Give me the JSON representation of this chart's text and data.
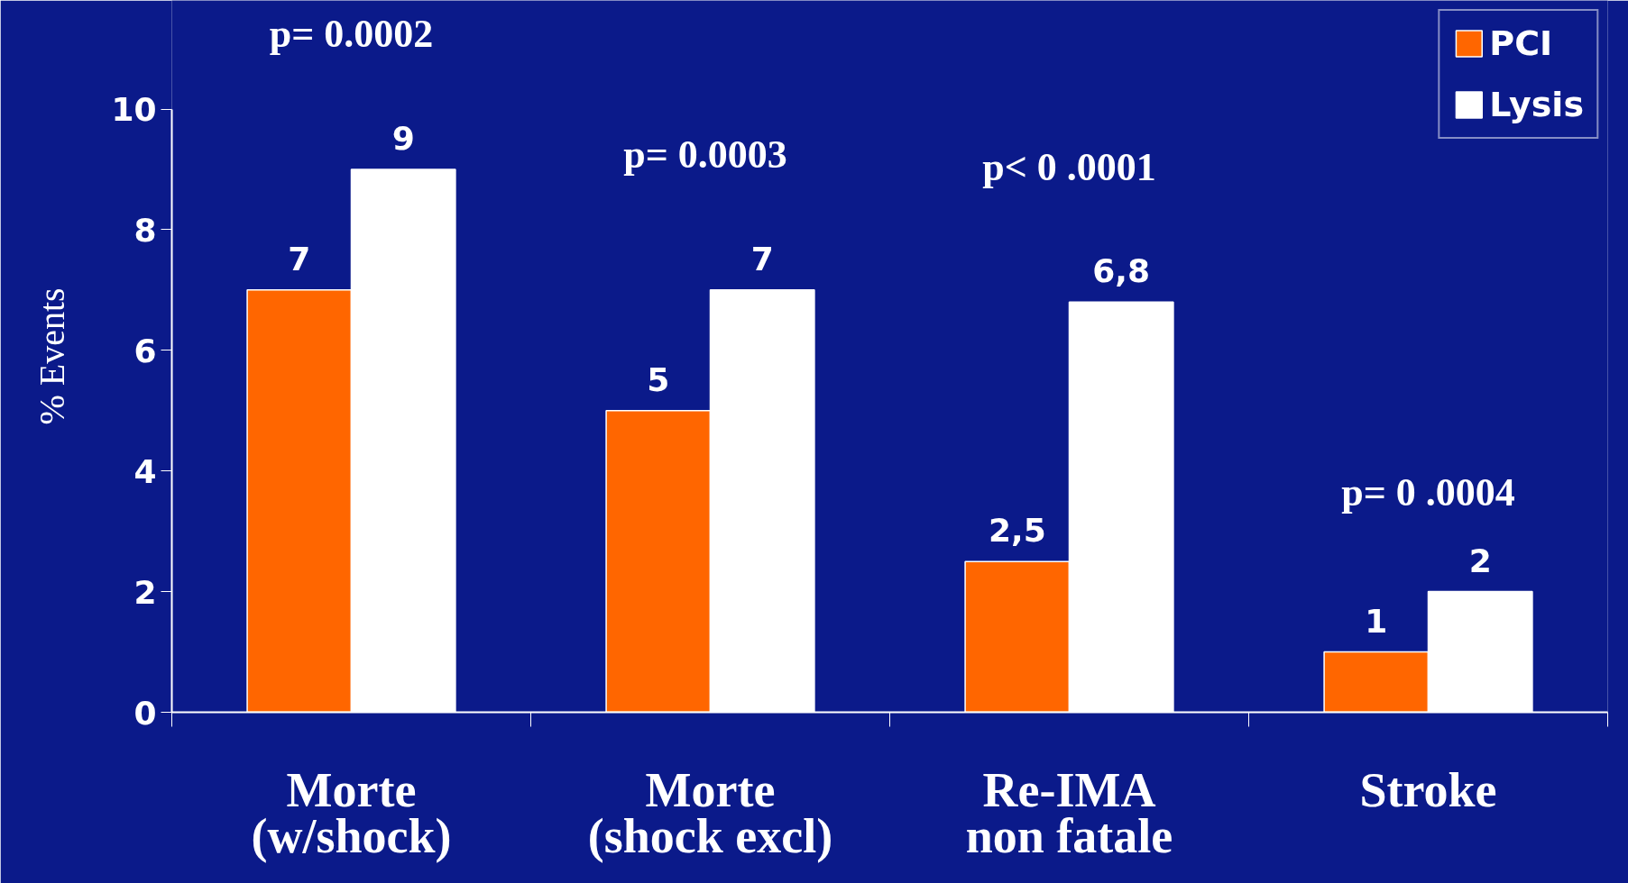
{
  "chart_data": {
    "type": "bar",
    "categories": [
      "Morte\n(w/shock)",
      "Morte\n(shock excl)",
      "Re-IMA\nnon fatale",
      "Stroke"
    ],
    "series": [
      {
        "name": "PCI",
        "color": "#ff6600",
        "values": [
          7,
          5,
          2.5,
          1
        ],
        "value_labels": [
          "7",
          "5",
          "2,5",
          "1"
        ]
      },
      {
        "name": "Lysis",
        "color": "#ffffff",
        "values": [
          9,
          7,
          6.8,
          2
        ],
        "value_labels": [
          "9",
          "7",
          "6,8",
          "2"
        ]
      }
    ],
    "ylabel": "% Events",
    "ylim": [
      0,
      10
    ],
    "yticks": [
      0,
      2,
      4,
      6,
      8,
      10
    ],
    "grid": false,
    "legend": "top right",
    "annotations": [
      "p= 0.0002",
      "p=  0.0003",
      "p< 0 .0001",
      "p= 0 .0004"
    ]
  }
}
